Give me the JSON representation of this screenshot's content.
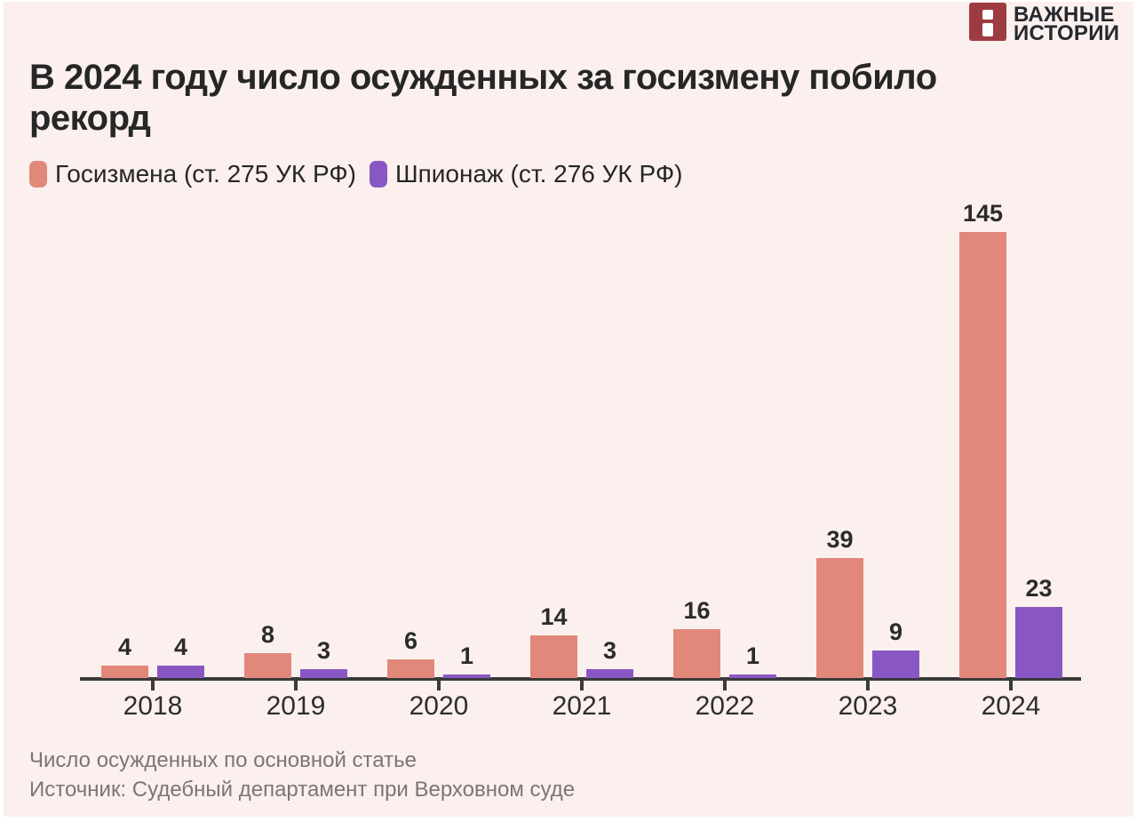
{
  "page": {
    "background_color": "#fbf0ed",
    "frame_color": "#ffffff"
  },
  "logo": {
    "name": "Важные истории",
    "line1": "ВАЖНЫЕ",
    "line2": "ИСТОРИИ",
    "icon_color": "#9e3b41",
    "text_color": "#26282e"
  },
  "header": {
    "title_lines": [
      "В 2024 году число осужденных за госизмену побило",
      "рекорд"
    ]
  },
  "chart_data": {
    "type": "bar",
    "title": "В 2024 году число осужденных за госизмену побило рекорд",
    "categories": [
      "2018",
      "2019",
      "2020",
      "2021",
      "2022",
      "2023",
      "2024"
    ],
    "series": [
      {
        "key": "treason",
        "name": "Госизмена (ст. 275 УК РФ)",
        "color": "#e1887a",
        "values": [
          4,
          8,
          6,
          14,
          16,
          39,
          145
        ]
      },
      {
        "key": "espionage",
        "name": "Шпионаж (ст. 276 УК РФ)",
        "color": "#8957c4",
        "values": [
          4,
          3,
          1,
          3,
          1,
          9,
          23
        ]
      }
    ],
    "ylim": [
      0,
      145
    ],
    "grid": false,
    "legend_position": "top-left",
    "value_labels": true,
    "xlabel": "",
    "ylabel": ""
  },
  "footer": {
    "note": "Число осужденных по основной статье",
    "source": "Источник: Судебный департамент при Верховном суде"
  }
}
